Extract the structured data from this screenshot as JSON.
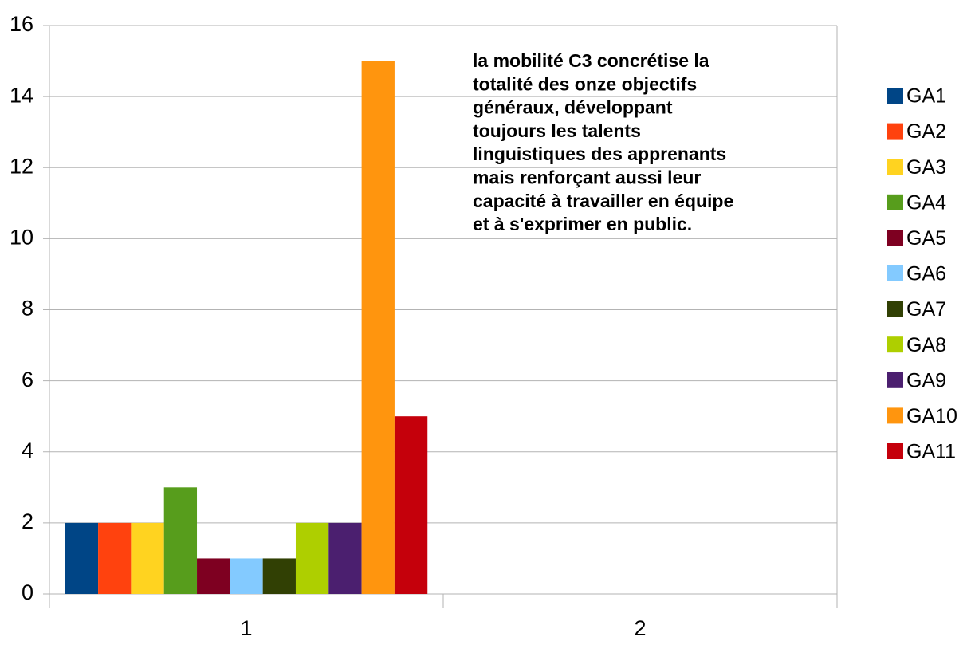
{
  "chart_data": {
    "type": "bar",
    "categories": [
      "1",
      "2"
    ],
    "series": [
      {
        "name": "GA1",
        "color": "#004586",
        "values": [
          2,
          null
        ]
      },
      {
        "name": "GA2",
        "color": "#ff420e",
        "values": [
          2,
          null
        ]
      },
      {
        "name": "GA3",
        "color": "#ffd320",
        "values": [
          2,
          null
        ]
      },
      {
        "name": "GA4",
        "color": "#579d1c",
        "values": [
          3,
          null
        ]
      },
      {
        "name": "GA5",
        "color": "#7e0021",
        "values": [
          1,
          null
        ]
      },
      {
        "name": "GA6",
        "color": "#83caff",
        "values": [
          1,
          null
        ]
      },
      {
        "name": "GA7",
        "color": "#314004",
        "values": [
          1,
          null
        ]
      },
      {
        "name": "GA8",
        "color": "#aecf00",
        "values": [
          2,
          null
        ]
      },
      {
        "name": "GA9",
        "color": "#4b1f6f",
        "values": [
          2,
          null
        ]
      },
      {
        "name": "GA10",
        "color": "#ff950e",
        "values": [
          15,
          null
        ]
      },
      {
        "name": "GA11",
        "color": "#c5000b",
        "values": [
          5,
          null
        ]
      }
    ],
    "ylim": [
      0,
      16
    ],
    "yticks": [
      0,
      2,
      4,
      6,
      8,
      10,
      12,
      14,
      16
    ],
    "grid": true,
    "legend": "right",
    "annotation": [
      "la mobilité C3 concrétise la",
      "totalité des onze objectifs",
      "généraux, développant",
      "toujours les talents",
      "linguistiques des apprenants",
      "mais renforçant aussi leur",
      "capacité à travailler en équipe",
      "et à s'exprimer en public."
    ]
  }
}
